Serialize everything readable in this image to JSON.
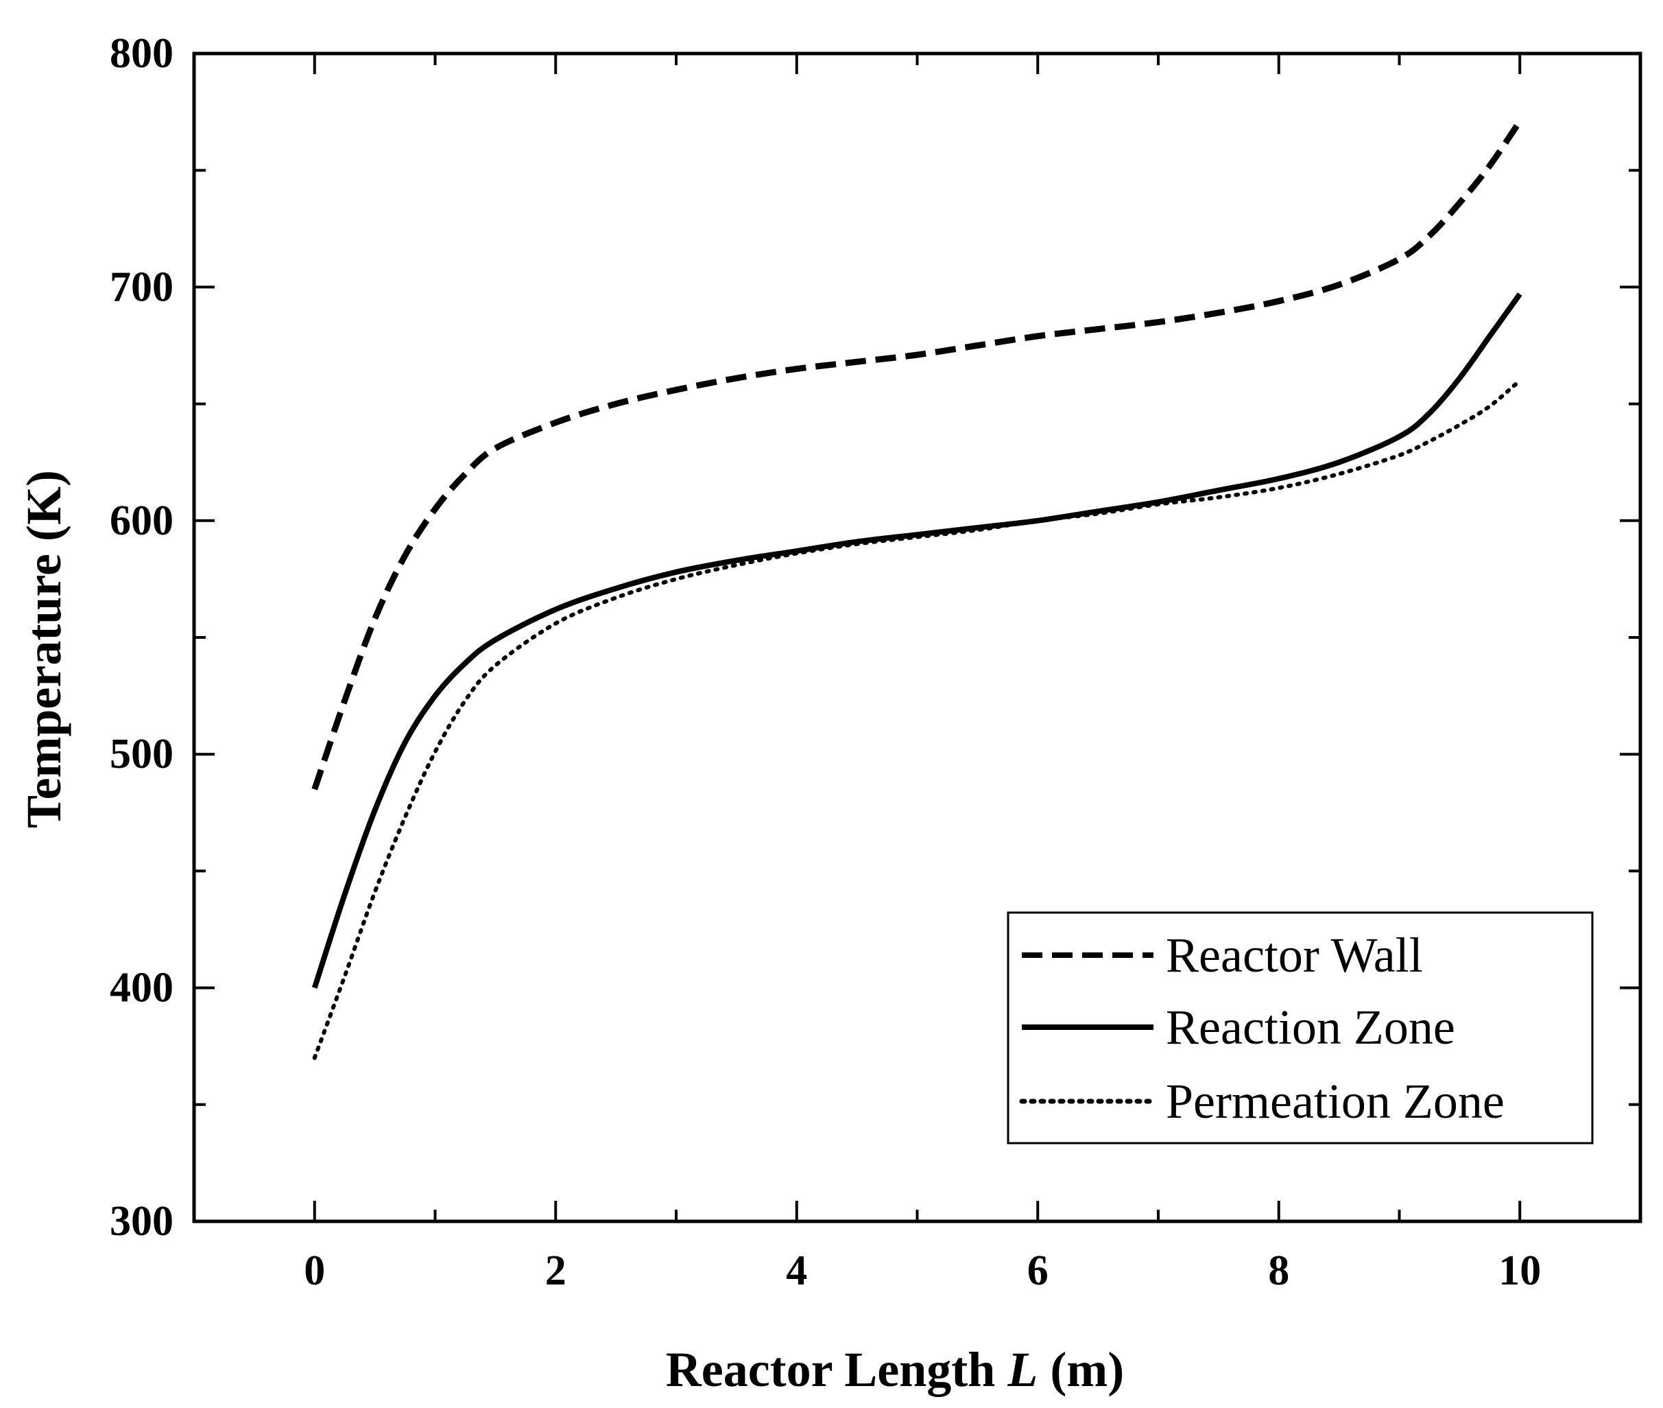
{
  "chart_data": {
    "type": "line",
    "title": "",
    "xlabel": {
      "prefix": "Reactor Length ",
      "var": "L",
      "suffix": " (m)"
    },
    "ylabel": "Temperature (K)",
    "xlim": [
      -1,
      11
    ],
    "ylim": [
      300,
      800
    ],
    "xticks": [
      0,
      2,
      4,
      6,
      8,
      10
    ],
    "xminor": [
      1,
      3,
      5,
      7,
      9
    ],
    "yticks": [
      300,
      400,
      500,
      600,
      700,
      800
    ],
    "yminor": [
      350,
      450,
      550,
      650,
      750
    ],
    "legend_position": "bottom-right",
    "series": [
      {
        "name": "Reactor Wall",
        "style": "dashed",
        "x": [
          0,
          0.25,
          0.5,
          0.75,
          1.0,
          1.25,
          1.5,
          2.0,
          2.5,
          3.0,
          3.5,
          4.0,
          4.5,
          5.0,
          5.5,
          6.0,
          6.5,
          7.0,
          7.5,
          8.0,
          8.5,
          9.0,
          9.25,
          9.5,
          9.75,
          10.0
        ],
        "y": [
          485,
          523,
          558,
          585,
          605,
          620,
          631,
          642,
          650,
          656,
          661,
          665,
          668,
          671,
          675,
          679,
          682,
          685,
          689,
          694,
          701,
          712,
          722,
          736,
          752,
          771
        ]
      },
      {
        "name": "Reaction Zone",
        "style": "solid",
        "x": [
          0,
          0.25,
          0.5,
          0.75,
          1.0,
          1.25,
          1.5,
          2.0,
          2.5,
          3.0,
          3.5,
          4.0,
          4.5,
          5.0,
          5.5,
          6.0,
          6.5,
          7.0,
          7.5,
          8.0,
          8.5,
          9.0,
          9.25,
          9.5,
          9.75,
          10.0
        ],
        "y": [
          400,
          440,
          476,
          505,
          525,
          539,
          549,
          562,
          571,
          578,
          583,
          587,
          591,
          594,
          597,
          600,
          604,
          608,
          613,
          618,
          625,
          636,
          646,
          661,
          679,
          697
        ]
      },
      {
        "name": "Permeation Zone",
        "style": "dotted",
        "x": [
          0,
          0.25,
          0.5,
          0.75,
          1.0,
          1.25,
          1.5,
          2.0,
          2.5,
          3.0,
          3.5,
          4.0,
          4.5,
          5.0,
          5.5,
          6.0,
          6.5,
          7.0,
          7.5,
          8.0,
          8.5,
          9.0,
          9.25,
          9.5,
          9.75,
          10.0
        ],
        "y": [
          370,
          405,
          441,
          473,
          501,
          523,
          538,
          556,
          567,
          575,
          581,
          586,
          590,
          593,
          596,
          600,
          603,
          607,
          610,
          614,
          620,
          628,
          634,
          641,
          649,
          660
        ]
      }
    ]
  }
}
